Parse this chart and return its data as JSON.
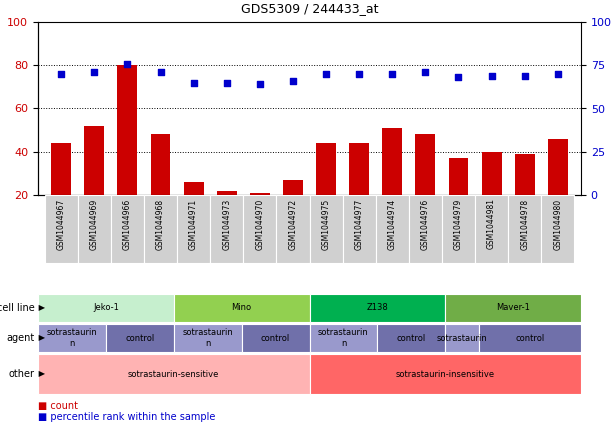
{
  "title": "GDS5309 / 244433_at",
  "samples": [
    "GSM1044967",
    "GSM1044969",
    "GSM1044966",
    "GSM1044968",
    "GSM1044971",
    "GSM1044973",
    "GSM1044970",
    "GSM1044972",
    "GSM1044975",
    "GSM1044977",
    "GSM1044974",
    "GSM1044976",
    "GSM1044979",
    "GSM1044981",
    "GSM1044978",
    "GSM1044980"
  ],
  "counts": [
    44,
    52,
    80,
    48,
    26,
    22,
    21,
    27,
    44,
    44,
    51,
    48,
    37,
    40,
    39,
    46
  ],
  "percentile_ranks": [
    70,
    71,
    76,
    71,
    65,
    65,
    64,
    66,
    70,
    70,
    70,
    71,
    68,
    69,
    69,
    70
  ],
  "ylim_left": [
    20,
    100
  ],
  "ylim_right": [
    0,
    100
  ],
  "yticks_left": [
    20,
    40,
    60,
    80,
    100
  ],
  "yticks_right": [
    0,
    25,
    50,
    75,
    100
  ],
  "ytick_right_labels": [
    "0",
    "25",
    "50",
    "75",
    "100%"
  ],
  "bar_color": "#cc0000",
  "dot_color": "#0000cc",
  "cell_line_groups": [
    {
      "name": "Jeko-1",
      "start": 0,
      "end": 3,
      "color": "#c6efce"
    },
    {
      "name": "Mino",
      "start": 4,
      "end": 7,
      "color": "#92d050"
    },
    {
      "name": "Z138",
      "start": 8,
      "end": 11,
      "color": "#00b050"
    },
    {
      "name": "Maver-1",
      "start": 12,
      "end": 15,
      "color": "#70ad47"
    }
  ],
  "agent_groups": [
    {
      "name": "sotrastaurin\nn",
      "start": 0,
      "end": 1,
      "color": "#9999cc"
    },
    {
      "name": "control",
      "start": 2,
      "end": 3,
      "color": "#7070aa"
    },
    {
      "name": "sotrastaurin\nn",
      "start": 4,
      "end": 5,
      "color": "#9999cc"
    },
    {
      "name": "control",
      "start": 6,
      "end": 7,
      "color": "#7070aa"
    },
    {
      "name": "sotrastaurin\nn",
      "start": 8,
      "end": 9,
      "color": "#9999cc"
    },
    {
      "name": "control",
      "start": 10,
      "end": 11,
      "color": "#7070aa"
    },
    {
      "name": "sotrastaurin",
      "start": 12,
      "end": 12,
      "color": "#9999cc"
    },
    {
      "name": "control",
      "start": 13,
      "end": 15,
      "color": "#7070aa"
    }
  ],
  "other_groups": [
    {
      "name": "sotrastaurin-sensitive",
      "start": 0,
      "end": 7,
      "color": "#ffb3b3"
    },
    {
      "name": "sotrastaurin-insensitive",
      "start": 8,
      "end": 15,
      "color": "#ff6666"
    }
  ],
  "row_labels": [
    "cell line",
    "agent",
    "other"
  ],
  "legend_items": [
    {
      "color": "#cc0000",
      "label": "count"
    },
    {
      "color": "#0000cc",
      "label": "percentile rank within the sample"
    }
  ],
  "xtick_bg": "#d0d0d0",
  "grid_color": "#000000",
  "grid_style": "dotted"
}
